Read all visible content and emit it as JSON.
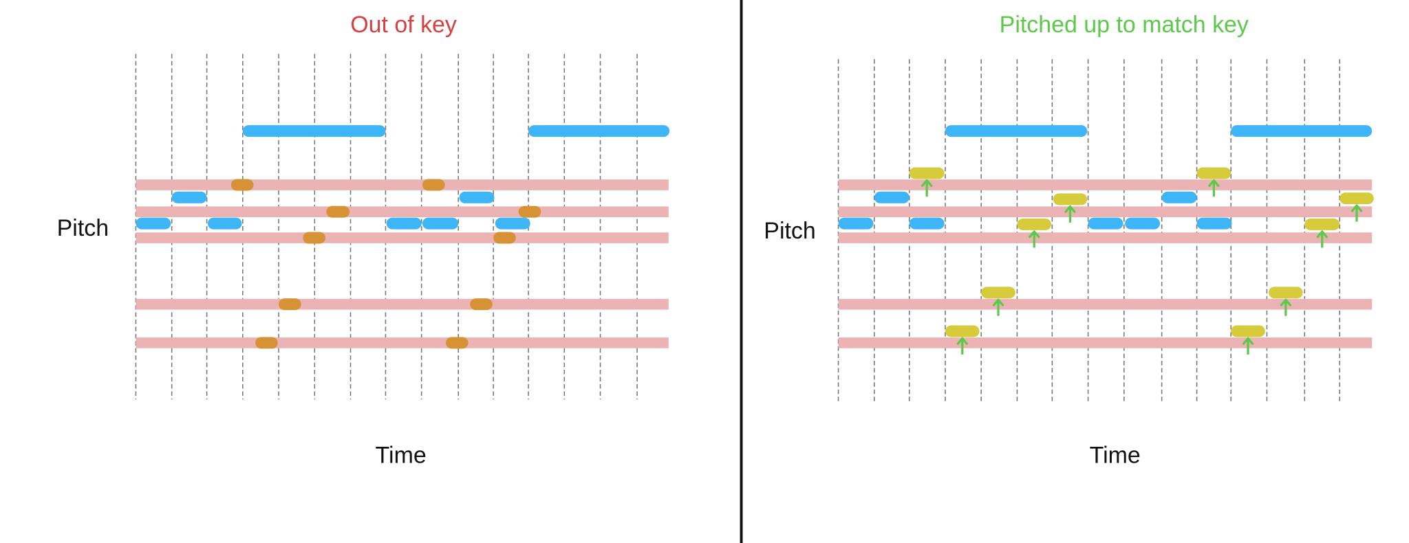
{
  "panels": [
    {
      "title": "Out of key",
      "y_label": "Pitch",
      "x_label": "Time"
    },
    {
      "title": "Pitched up to match key",
      "y_label": "Pitch",
      "x_label": "Time"
    }
  ]
}
